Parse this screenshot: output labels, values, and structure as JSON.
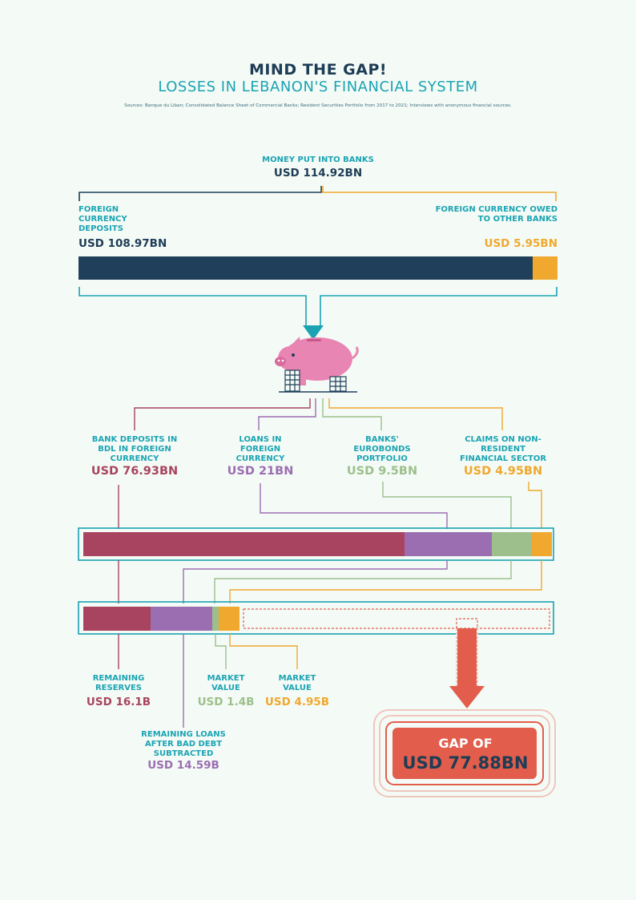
{
  "header": {
    "title": "MIND THE GAP!",
    "subtitle": "LOSSES IN LEBANON'S FINANCIAL SYSTEM",
    "sources": "Sources: Banque du Liban; Consolidated Balance Sheet of Commercial Banks; Resident Securities Portfolio from 2017 to 2021; Interviews with anonymous financial sources."
  },
  "colors": {
    "navy": "#1f3f5a",
    "teal": "#1ba3b3",
    "orange": "#f0a82e",
    "crimson": "#a8445f",
    "purple": "#9b6eb2",
    "sage": "#9dbf8c",
    "pink": "#e985b3",
    "red": "#e25d4b",
    "background": "#f4fbf6"
  },
  "top": {
    "label": "MONEY PUT INTO BANKS",
    "value": "USD 114.92BN",
    "left_label": "FOREIGN CURRENCY DEPOSITS",
    "left_value": "USD 108.97BN",
    "right_label": "FOREIGN CURRENCY OWED TO OTHER BANKS",
    "right_value": "USD 5.95BN"
  },
  "icon": "piggy-bank-icon",
  "allocation": {
    "items": [
      {
        "label": "BANK DEPOSITS IN BDL IN FOREIGN CURRENCY",
        "value": "USD 76.93BN"
      },
      {
        "label": "LOANS IN FOREIGN CURRENCY",
        "value": "USD 21BN"
      },
      {
        "label": "BANKS' EUROBONDS PORTFOLIO",
        "value": "USD 9.5BN"
      },
      {
        "label": "CLAIMS ON NON-RESIDENT FINANCIAL SECTOR",
        "value": "USD 4.95BN"
      }
    ]
  },
  "remaining": {
    "items": [
      {
        "label": "REMAINING RESERVES",
        "value": "USD 16.1B"
      },
      {
        "label": "REMAINING LOANS AFTER BAD DEBT SUBTRACTED",
        "value": "USD 14.59B"
      },
      {
        "label": "MARKET VALUE",
        "value": "USD 1.4B"
      },
      {
        "label": "MARKET VALUE",
        "value": "USD 4.95B"
      }
    ]
  },
  "gap": {
    "label": "GAP OF",
    "value": "USD 77.88BN"
  },
  "chart_data": {
    "type": "bar",
    "title": "",
    "series": [
      {
        "categories": [
          "Foreign currency deposits",
          "Foreign currency owed to other banks"
        ],
        "values": [
          108.97,
          5.95
        ],
        "total": 114.92
      },
      {
        "categories": [
          "Bank deposits in BDL in foreign currency",
          "Loans in foreign currency",
          "Banks' Eurobonds portfolio",
          "Claims on non-resident financial sector"
        ],
        "values": [
          76.93,
          21,
          9.5,
          4.95
        ]
      },
      {
        "categories": [
          "Remaining reserves",
          "Remaining loans after bad debt subtracted",
          "Market value (Eurobonds)",
          "Market value (claims)",
          "Gap"
        ],
        "values": [
          16.1,
          14.59,
          1.4,
          4.95,
          77.88
        ]
      }
    ]
  }
}
